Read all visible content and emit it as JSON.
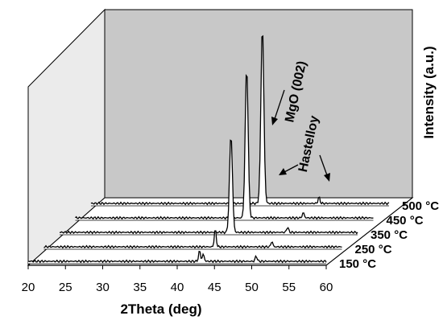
{
  "chart_data": {
    "type": "line",
    "xlabel": "2Theta (deg)",
    "ylabel": "Intensity (a.u.)",
    "xlim": [
      20,
      60
    ],
    "x_ticks": [
      "20",
      "25",
      "30",
      "35",
      "40",
      "45",
      "50",
      "55",
      "60"
    ],
    "grid": false,
    "series": [
      {
        "name": "150 °C",
        "peaks": [
          {
            "x": 43.0,
            "height": 0.06
          },
          {
            "x": 43.5,
            "height": 0.04
          },
          {
            "x": 50.6,
            "height": 0.03
          }
        ]
      },
      {
        "name": "250 °C",
        "peaks": [
          {
            "x": 43.0,
            "height": 0.1
          },
          {
            "x": 50.6,
            "height": 0.03
          }
        ]
      },
      {
        "name": "350 °C",
        "peaks": [
          {
            "x": 43.0,
            "height": 0.55
          },
          {
            "x": 50.6,
            "height": 0.03
          }
        ]
      },
      {
        "name": "450 °C",
        "peaks": [
          {
            "x": 43.0,
            "height": 0.85
          },
          {
            "x": 50.6,
            "height": 0.03
          }
        ]
      },
      {
        "name": "500 °C",
        "peaks": [
          {
            "x": 43.0,
            "height": 1.0
          },
          {
            "x": 50.6,
            "height": 0.035
          }
        ]
      }
    ],
    "annotations": [
      "MgO (002)",
      "Hastelloy"
    ]
  }
}
